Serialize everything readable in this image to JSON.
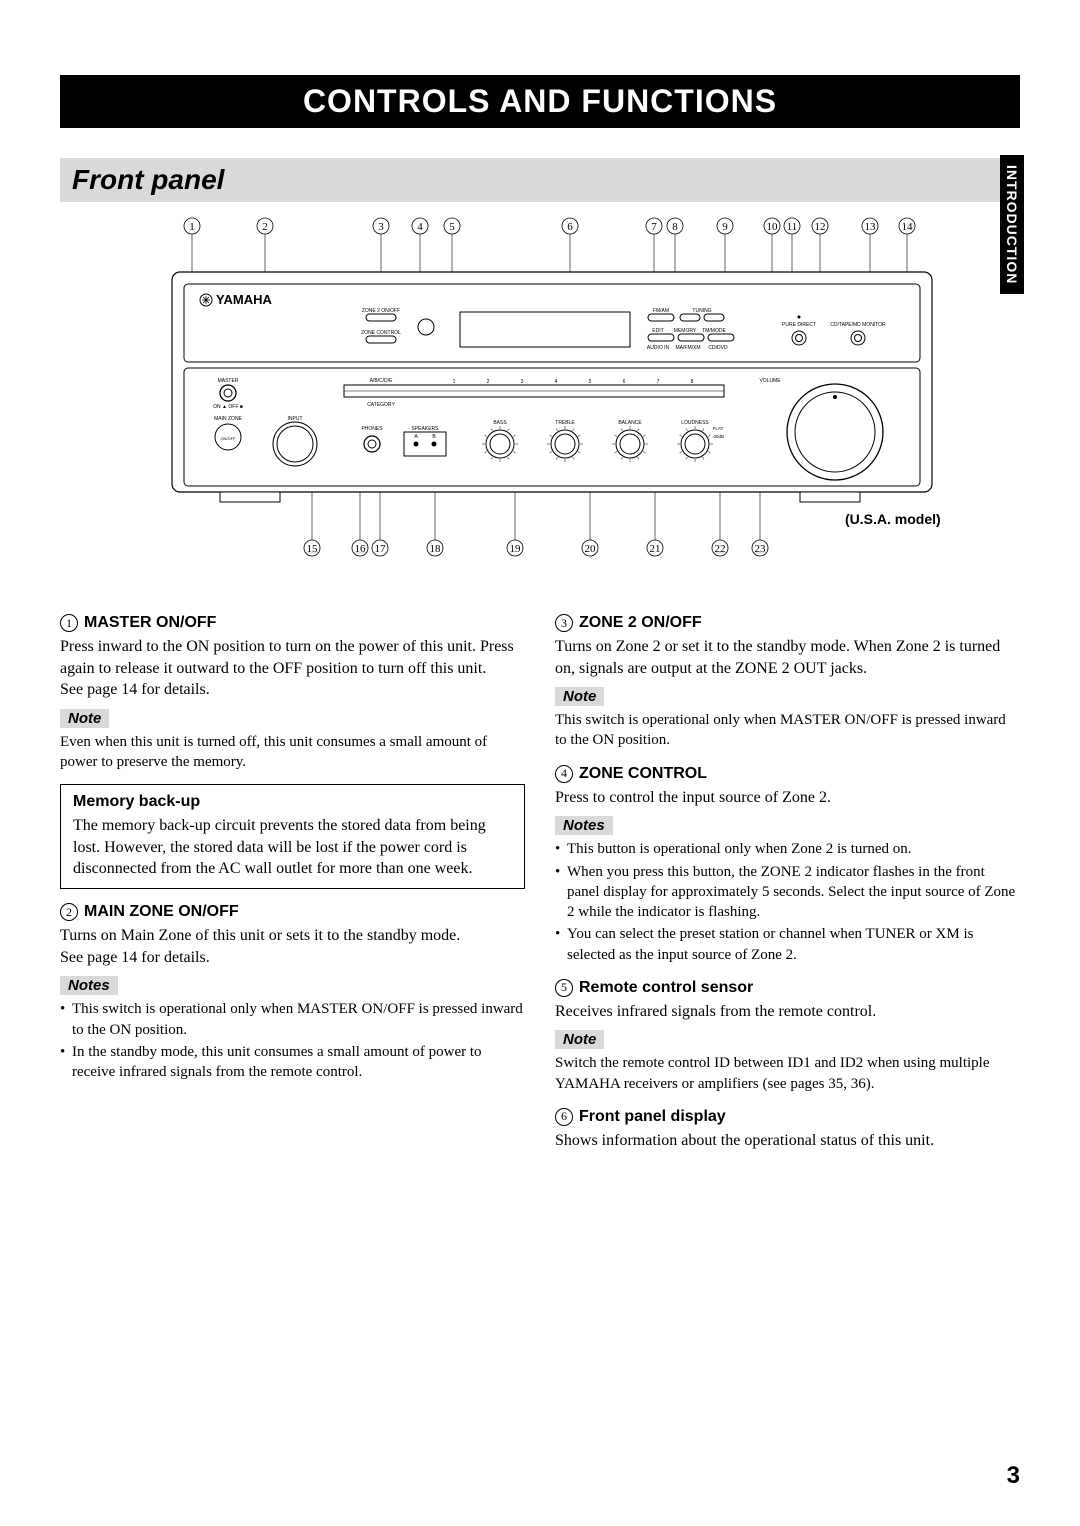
{
  "title": "CONTROLS AND FUNCTIONS",
  "section": "Front panel",
  "side_tab": "INTRODUCTION",
  "page_number": "3",
  "diagram": {
    "brand": "YAMAHA",
    "model_note": "(U.S.A. model)",
    "top_callouts": [
      "1",
      "2",
      "3",
      "4",
      "5",
      "6",
      "7",
      "8",
      "9",
      "10",
      "11",
      "12",
      "13",
      "14"
    ],
    "bottom_callouts": [
      "15",
      "16",
      "17",
      "18",
      "19",
      "20",
      "21",
      "22",
      "23"
    ],
    "top_x": [
      92,
      165,
      281,
      320,
      352,
      470,
      554,
      575,
      625,
      672,
      692,
      720,
      770,
      807
    ],
    "bottom_x": [
      212,
      260,
      280,
      335,
      415,
      490,
      555,
      620,
      660
    ],
    "labels": {
      "zone2": "ZONE 2 ON/OFF",
      "zonectrl": "ZONE CONTROL",
      "fmam": "FM/AM",
      "tuning": "TUNING",
      "puredirect": "PURE DIRECT",
      "tapemd": "CD/TAPE/MD MONITOR",
      "edit": "EDIT",
      "memory": "MEMORY",
      "tmmode": "TM/MODE",
      "audio1": "AUDIO IN",
      "bal": "MA/FM/XM",
      "edv": "CD/DVD",
      "master": "MASTER",
      "abcde": "A/B/C/D/E",
      "category": "CATEGORY",
      "mainzone": "MAIN ZONE",
      "onoff": "ON/OFF",
      "input": "INPUT",
      "phones": "PHONES",
      "speakers": "SPEAKERS",
      "bass": "BASS",
      "treble": "TREBLE",
      "balance": "BALANCE",
      "loudness": "LOUDNESS",
      "flat": "FLAT",
      "volume": "VOLUME"
    }
  },
  "left_col": {
    "item1": {
      "num": "1",
      "title": "MASTER ON/OFF",
      "body": "Press inward to the ON position to turn on the power of this unit. Press again to release it outward to the OFF position to turn off this unit.",
      "see": "See page 14 for details.",
      "note_label": "Note",
      "note_text": "Even when this unit is turned off, this unit consumes a small amount of power to preserve the memory."
    },
    "memory_box": {
      "title": "Memory back-up",
      "body": "The memory back-up circuit prevents the stored data from being lost. However, the stored data will be lost if the power cord is disconnected from the AC wall outlet for more than one week."
    },
    "item2": {
      "num": "2",
      "title": "MAIN ZONE ON/OFF",
      "body": "Turns on Main Zone of this unit or sets it to the standby mode.",
      "see": "See page 14 for details.",
      "note_label": "Notes",
      "bullets": [
        "This switch is operational only when MASTER ON/OFF is pressed inward to the ON position.",
        "In the standby mode, this unit consumes a small amount of power to receive infrared signals from the remote control."
      ]
    }
  },
  "right_col": {
    "item3": {
      "num": "3",
      "title": "ZONE 2 ON/OFF",
      "body": "Turns on Zone 2 or set it to the standby mode. When Zone 2 is turned on, signals are output at the ZONE 2 OUT jacks.",
      "note_label": "Note",
      "note_text": "This switch is operational only when MASTER ON/OFF is pressed inward to the ON position."
    },
    "item4": {
      "num": "4",
      "title": "ZONE CONTROL",
      "body": "Press to control the input source of Zone 2.",
      "note_label": "Notes",
      "bullets": [
        "This button is operational only when Zone 2 is turned on.",
        "When you press this button, the ZONE 2 indicator flashes in the front panel display for approximately 5 seconds. Select the input source of Zone 2 while the indicator is flashing.",
        "You can select the preset station or channel when TUNER or XM is selected as the input source of Zone 2."
      ]
    },
    "item5": {
      "num": "5",
      "title": "Remote control sensor",
      "body": "Receives infrared signals from the remote control.",
      "note_label": "Note",
      "note_text": "Switch the remote control ID between ID1 and ID2 when using multiple YAMAHA receivers or amplifiers (see pages 35, 36)."
    },
    "item6": {
      "num": "6",
      "title": "Front panel display",
      "body": "Shows information about the operational status of this unit."
    }
  }
}
